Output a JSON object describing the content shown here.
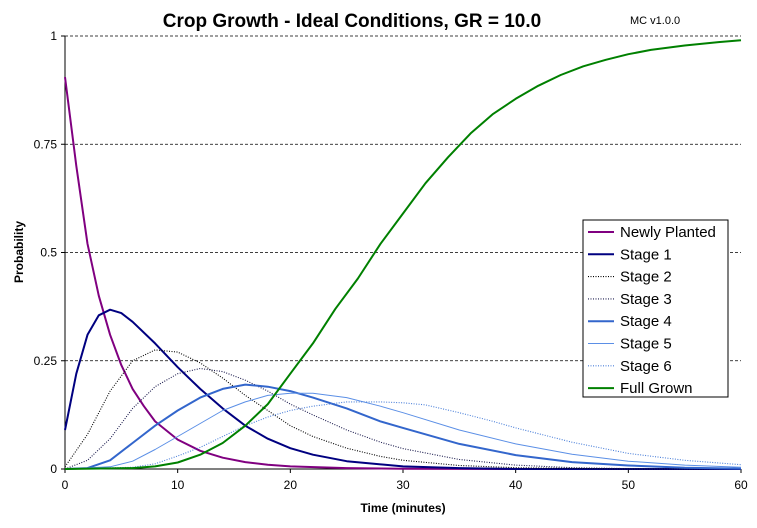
{
  "chart_data": {
    "type": "line",
    "title": "Crop Growth - Ideal Conditions, GR = 10.0",
    "version_label": "MC v1.0.0",
    "xlabel": "Time (minutes)",
    "ylabel": "Probability",
    "xlim": [
      0,
      60
    ],
    "ylim": [
      0,
      1
    ],
    "x_ticks": [
      "0",
      "10",
      "20",
      "30",
      "40",
      "50",
      "60"
    ],
    "y_ticks": [
      "0",
      "0.25",
      "0.5",
      "0.75",
      "1"
    ],
    "grid": "horizontal-dashed",
    "legend_position": "right",
    "series": [
      {
        "name": "Newly Planted",
        "color": "#800080",
        "style": "solid-thick",
        "points": [
          [
            0,
            0.905
          ],
          [
            1,
            0.7
          ],
          [
            2,
            0.52
          ],
          [
            3,
            0.4
          ],
          [
            4,
            0.31
          ],
          [
            5,
            0.24
          ],
          [
            6,
            0.185
          ],
          [
            7,
            0.145
          ],
          [
            8,
            0.11
          ],
          [
            10,
            0.068
          ],
          [
            12,
            0.042
          ],
          [
            14,
            0.026
          ],
          [
            16,
            0.016
          ],
          [
            18,
            0.01
          ],
          [
            20,
            0.006
          ],
          [
            25,
            0.002
          ],
          [
            30,
            0.0005
          ],
          [
            40,
            0
          ],
          [
            60,
            0
          ]
        ]
      },
      {
        "name": "Stage 1",
        "color": "#000080",
        "style": "solid-thick",
        "points": [
          [
            0,
            0.09
          ],
          [
            1,
            0.22
          ],
          [
            2,
            0.31
          ],
          [
            3,
            0.355
          ],
          [
            4,
            0.368
          ],
          [
            5,
            0.36
          ],
          [
            6,
            0.34
          ],
          [
            8,
            0.29
          ],
          [
            10,
            0.235
          ],
          [
            12,
            0.185
          ],
          [
            14,
            0.14
          ],
          [
            16,
            0.1
          ],
          [
            18,
            0.07
          ],
          [
            20,
            0.048
          ],
          [
            22,
            0.033
          ],
          [
            25,
            0.018
          ],
          [
            30,
            0.006
          ],
          [
            35,
            0.002
          ],
          [
            40,
            0
          ],
          [
            60,
            0
          ]
        ]
      },
      {
        "name": "Stage 2",
        "color": "#000000",
        "style": "dotted",
        "points": [
          [
            0,
            0.005
          ],
          [
            2,
            0.08
          ],
          [
            4,
            0.18
          ],
          [
            6,
            0.25
          ],
          [
            8,
            0.275
          ],
          [
            10,
            0.27
          ],
          [
            12,
            0.245
          ],
          [
            14,
            0.21
          ],
          [
            16,
            0.17
          ],
          [
            18,
            0.135
          ],
          [
            20,
            0.1
          ],
          [
            22,
            0.075
          ],
          [
            25,
            0.048
          ],
          [
            28,
            0.029
          ],
          [
            30,
            0.02
          ],
          [
            35,
            0.008
          ],
          [
            40,
            0.003
          ],
          [
            50,
            0
          ],
          [
            60,
            0
          ]
        ]
      },
      {
        "name": "Stage 3",
        "color": "#1a1a4d",
        "style": "dotted",
        "points": [
          [
            0,
            0
          ],
          [
            2,
            0.02
          ],
          [
            4,
            0.07
          ],
          [
            6,
            0.14
          ],
          [
            8,
            0.19
          ],
          [
            10,
            0.22
          ],
          [
            12,
            0.232
          ],
          [
            14,
            0.225
          ],
          [
            16,
            0.205
          ],
          [
            18,
            0.18
          ],
          [
            20,
            0.15
          ],
          [
            22,
            0.125
          ],
          [
            25,
            0.09
          ],
          [
            28,
            0.062
          ],
          [
            30,
            0.047
          ],
          [
            35,
            0.022
          ],
          [
            40,
            0.009
          ],
          [
            45,
            0.003
          ],
          [
            50,
            0.001
          ],
          [
            60,
            0
          ]
        ]
      },
      {
        "name": "Stage 4",
        "color": "#3366cc",
        "style": "solid-thick",
        "points": [
          [
            0,
            0
          ],
          [
            2,
            0.002
          ],
          [
            4,
            0.02
          ],
          [
            6,
            0.06
          ],
          [
            8,
            0.1
          ],
          [
            10,
            0.135
          ],
          [
            12,
            0.165
          ],
          [
            14,
            0.185
          ],
          [
            16,
            0.195
          ],
          [
            18,
            0.19
          ],
          [
            20,
            0.18
          ],
          [
            22,
            0.165
          ],
          [
            25,
            0.14
          ],
          [
            28,
            0.11
          ],
          [
            30,
            0.095
          ],
          [
            35,
            0.058
          ],
          [
            40,
            0.032
          ],
          [
            45,
            0.016
          ],
          [
            50,
            0.008
          ],
          [
            55,
            0.003
          ],
          [
            60,
            0.001
          ]
        ]
      },
      {
        "name": "Stage 5",
        "color": "#5b8fe6",
        "style": "thin-solid",
        "points": [
          [
            0,
            0
          ],
          [
            4,
            0.005
          ],
          [
            6,
            0.018
          ],
          [
            8,
            0.045
          ],
          [
            10,
            0.075
          ],
          [
            12,
            0.105
          ],
          [
            14,
            0.135
          ],
          [
            16,
            0.155
          ],
          [
            18,
            0.17
          ],
          [
            20,
            0.175
          ],
          [
            22,
            0.175
          ],
          [
            25,
            0.165
          ],
          [
            28,
            0.145
          ],
          [
            30,
            0.13
          ],
          [
            35,
            0.09
          ],
          [
            40,
            0.058
          ],
          [
            45,
            0.034
          ],
          [
            50,
            0.018
          ],
          [
            55,
            0.009
          ],
          [
            60,
            0.004
          ]
        ]
      },
      {
        "name": "Stage 6",
        "color": "#4a7fd9",
        "style": "dotted",
        "points": [
          [
            0,
            0
          ],
          [
            6,
            0.004
          ],
          [
            8,
            0.012
          ],
          [
            10,
            0.03
          ],
          [
            12,
            0.05
          ],
          [
            14,
            0.075
          ],
          [
            16,
            0.1
          ],
          [
            18,
            0.12
          ],
          [
            20,
            0.135
          ],
          [
            22,
            0.145
          ],
          [
            25,
            0.155
          ],
          [
            28,
            0.155
          ],
          [
            30,
            0.153
          ],
          [
            32,
            0.148
          ],
          [
            35,
            0.13
          ],
          [
            38,
            0.11
          ],
          [
            40,
            0.095
          ],
          [
            45,
            0.062
          ],
          [
            50,
            0.036
          ],
          [
            55,
            0.02
          ],
          [
            60,
            0.01
          ]
        ]
      },
      {
        "name": "Full Grown",
        "color": "#008000",
        "style": "solid-thick",
        "points": [
          [
            0,
            0
          ],
          [
            6,
            0.002
          ],
          [
            8,
            0.006
          ],
          [
            10,
            0.015
          ],
          [
            12,
            0.033
          ],
          [
            14,
            0.06
          ],
          [
            16,
            0.1
          ],
          [
            18,
            0.15
          ],
          [
            20,
            0.22
          ],
          [
            22,
            0.29
          ],
          [
            24,
            0.37
          ],
          [
            26,
            0.44
          ],
          [
            28,
            0.52
          ],
          [
            30,
            0.59
          ],
          [
            32,
            0.66
          ],
          [
            34,
            0.72
          ],
          [
            36,
            0.775
          ],
          [
            38,
            0.82
          ],
          [
            40,
            0.855
          ],
          [
            42,
            0.885
          ],
          [
            44,
            0.91
          ],
          [
            46,
            0.93
          ],
          [
            48,
            0.945
          ],
          [
            50,
            0.958
          ],
          [
            52,
            0.968
          ],
          [
            55,
            0.978
          ],
          [
            58,
            0.986
          ],
          [
            60,
            0.99
          ]
        ]
      }
    ]
  }
}
